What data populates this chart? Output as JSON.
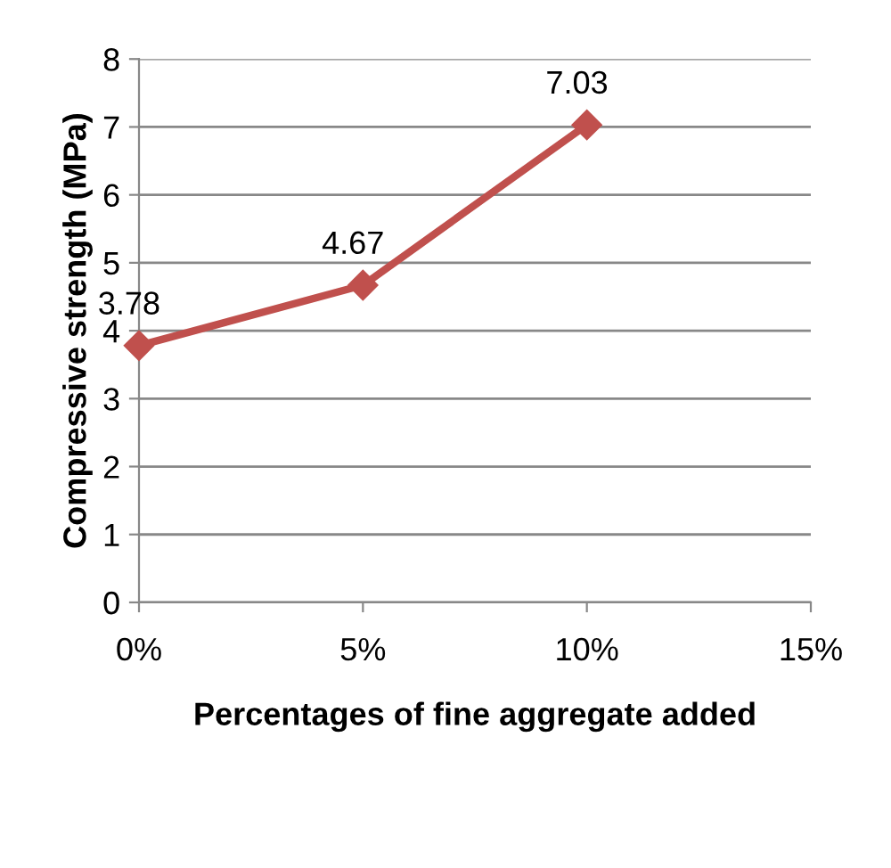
{
  "chart_data": {
    "type": "line",
    "xlabel": "Percentages of fine aggregate added",
    "ylabel": "Compressive strength (MPa)",
    "x": [
      0,
      5,
      10
    ],
    "series": [
      {
        "color": "#c0504d",
        "values": [
          3.78,
          4.67,
          7.03
        ]
      }
    ],
    "xlim": [
      0,
      15
    ],
    "xticks": [
      {
        "value": 0,
        "label": "0%"
      },
      {
        "value": 5,
        "label": "5%"
      },
      {
        "value": 10,
        "label": "10%"
      },
      {
        "value": 15,
        "label": "15%"
      }
    ],
    "ylim": [
      0,
      8
    ],
    "yticks": [
      0,
      1,
      2,
      3,
      4,
      5,
      6,
      7,
      8
    ],
    "grid": "y",
    "marker": "diamond",
    "line_style": "solid",
    "data_labels": true
  }
}
